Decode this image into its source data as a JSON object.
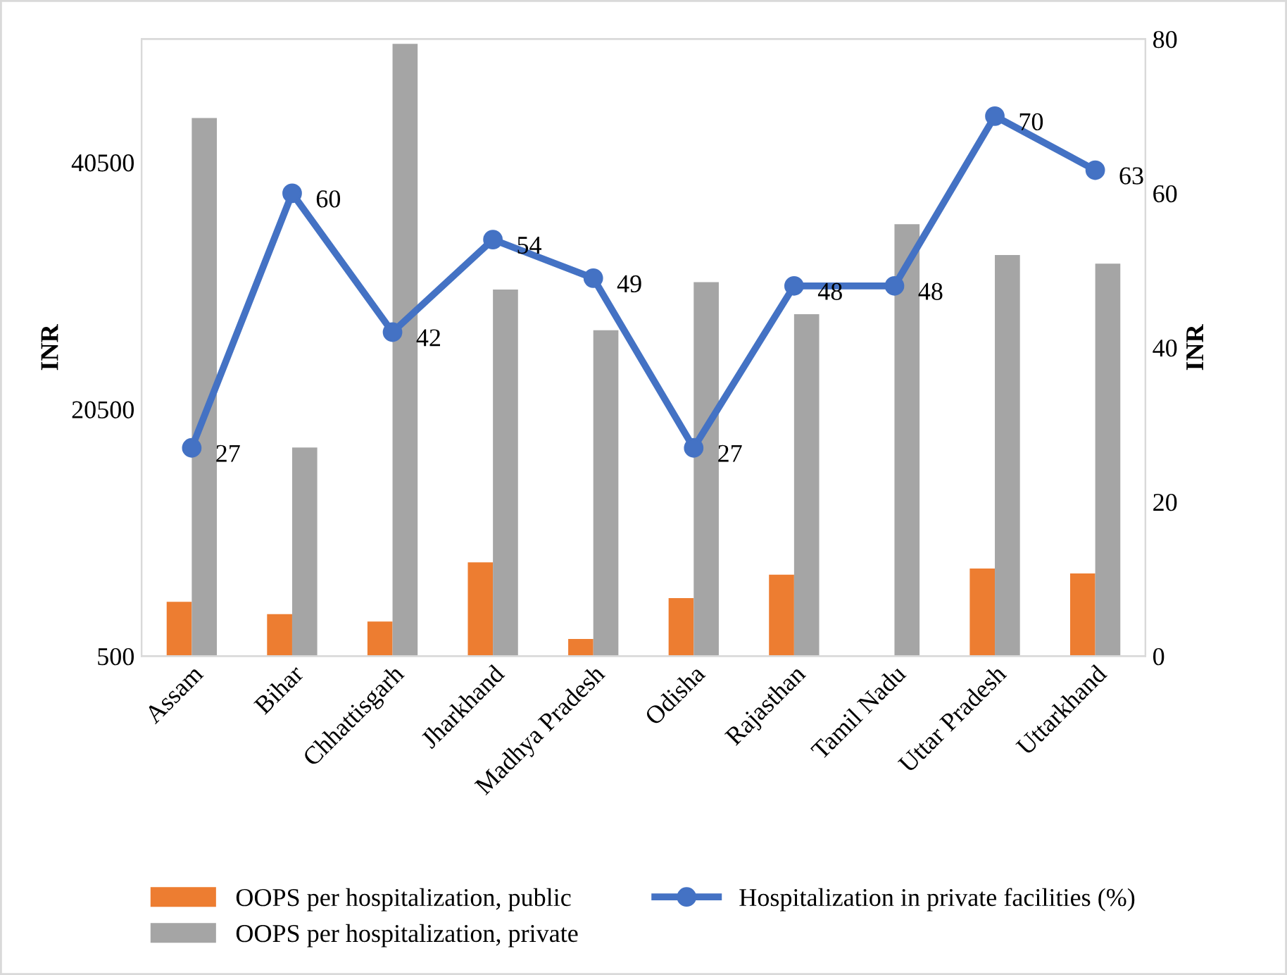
{
  "chart_data": {
    "type": "bar",
    "categories": [
      "Assam",
      "Bihar",
      "Chhattisgarh",
      "Jharkhand",
      "Madhya Pradesh",
      "Odisha",
      "Rajasthan",
      "Tamil Nadu",
      "Uttar Pradesh",
      "Uttarkhand"
    ],
    "series": [
      {
        "name": "OOPS per hospitalization, public",
        "color": "#ed7d31",
        "values": [
          4900,
          3900,
          3300,
          8100,
          1900,
          5200,
          7100,
          null,
          7600,
          7200
        ]
      },
      {
        "name": "OOPS per hospitalization, private",
        "color": "#a5a5a5",
        "values": [
          44100,
          17400,
          50100,
          30200,
          26900,
          30800,
          28200,
          35500,
          33000,
          32300
        ]
      },
      {
        "name": "Hospitalization in private facilities (%)",
        "type": "line",
        "axis": "y2",
        "color": "#4472c4",
        "marker": "circle",
        "values": [
          27,
          60,
          42,
          54,
          49,
          27,
          48,
          48,
          70,
          63
        ],
        "value_labels": [
          "27",
          "60",
          "42",
          "54",
          "49",
          "27",
          "48",
          "48",
          "70",
          "63"
        ]
      }
    ],
    "ylabel": "INR",
    "y2label": "INR",
    "ylim": [
      500,
      50500
    ],
    "yticks": [
      500,
      20500,
      40500
    ],
    "y2lim": [
      0,
      80
    ],
    "y2ticks": [
      0,
      20,
      40,
      60,
      80
    ],
    "grid": false,
    "legend": "bottom"
  }
}
